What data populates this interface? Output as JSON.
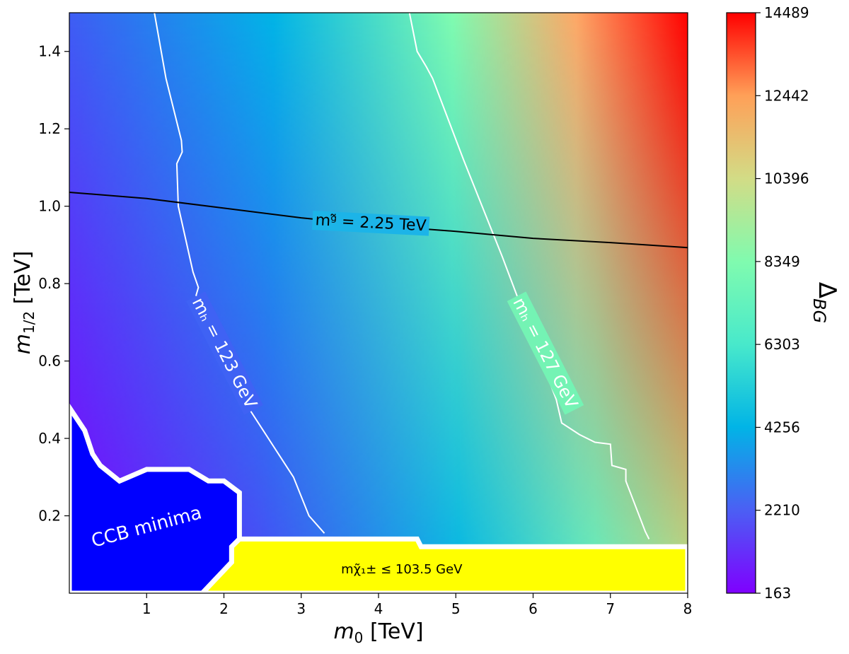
{
  "chart_data": {
    "type": "heatmap",
    "title": "",
    "xlabel": "m₀ [TeV]",
    "ylabel": "m₁/₂ [TeV]",
    "xlim": [
      0,
      8
    ],
    "ylim": [
      0,
      1.5
    ],
    "x_ticks": [
      1,
      2,
      3,
      4,
      5,
      6,
      7,
      8
    ],
    "x_tick_labels": [
      "1",
      "2",
      "3",
      "4",
      "5",
      "6",
      "7",
      "8"
    ],
    "y_ticks": [
      0.2,
      0.4,
      0.6,
      0.8,
      1.0,
      1.2,
      1.4
    ],
    "y_tick_labels": [
      "0.2",
      "0.4",
      "0.6",
      "0.8",
      "1.0",
      "1.2",
      "1.4"
    ],
    "colormap": "rainbow",
    "colorbar": {
      "label": "ΔBG",
      "min": 163,
      "max": 14489,
      "ticks": [
        163,
        2210,
        4256,
        6303,
        8349,
        10396,
        12442,
        14489
      ],
      "tick_labels": [
        "163",
        "2210",
        "4256",
        "6303",
        "8349",
        "10396",
        "12442",
        "14489"
      ]
    },
    "contours": [
      {
        "label": "mₕ = 123 GeV",
        "color": "#ffffff",
        "points": [
          [
            1.1,
            1.5
          ],
          [
            1.25,
            1.33
          ],
          [
            1.45,
            1.17
          ],
          [
            1.46,
            1.14
          ],
          [
            1.39,
            1.11
          ],
          [
            1.41,
            1.0
          ],
          [
            1.6,
            0.83
          ],
          [
            1.67,
            0.79
          ],
          [
            1.64,
            0.77
          ],
          [
            2.25,
            0.5
          ],
          [
            2.9,
            0.3
          ],
          [
            3.1,
            0.2
          ],
          [
            3.3,
            0.155
          ]
        ],
        "label_position": [
          2.0,
          0.62
        ],
        "label_rotation_deg": 63
      },
      {
        "label": "mₕ = 127 GeV",
        "color": "#ffffff",
        "points": [
          [
            4.4,
            1.5
          ],
          [
            4.5,
            1.4
          ],
          [
            4.62,
            1.36
          ],
          [
            4.7,
            1.33
          ],
          [
            5.1,
            1.12
          ],
          [
            5.6,
            0.87
          ],
          [
            6.3,
            0.5
          ],
          [
            6.37,
            0.44
          ],
          [
            6.6,
            0.41
          ],
          [
            6.8,
            0.39
          ],
          [
            7.0,
            0.385
          ],
          [
            7.02,
            0.33
          ],
          [
            7.2,
            0.32
          ],
          [
            7.2,
            0.29
          ],
          [
            7.45,
            0.16
          ],
          [
            7.5,
            0.14
          ]
        ],
        "label_position": [
          6.15,
          0.62
        ],
        "label_rotation_deg": 63
      },
      {
        "label": "mᵍ̃ = 2.25 TeV",
        "color": "#000000",
        "points": [
          [
            0,
            1.036
          ],
          [
            1,
            1.02
          ],
          [
            2,
            0.995
          ],
          [
            3,
            0.97
          ],
          [
            4,
            0.95
          ],
          [
            5,
            0.935
          ],
          [
            6,
            0.917
          ],
          [
            7,
            0.906
          ],
          [
            8,
            0.893
          ]
        ],
        "label_position": [
          3.9,
          0.955
        ],
        "label_rotation_deg": 3
      }
    ],
    "regions": [
      {
        "label": "CCB minima",
        "color": "#0000ff",
        "polygon": [
          [
            0,
            0
          ],
          [
            1.72,
            0
          ],
          [
            2.1,
            0.08
          ],
          [
            2.1,
            0.12
          ],
          [
            2.2,
            0.14
          ],
          [
            2.2,
            0.25
          ],
          [
            2.2,
            0.26
          ],
          [
            2.0,
            0.29
          ],
          [
            1.8,
            0.29
          ],
          [
            1.55,
            0.32
          ],
          [
            1.0,
            0.32
          ],
          [
            0.65,
            0.29
          ],
          [
            0.4,
            0.33
          ],
          [
            0.3,
            0.36
          ],
          [
            0.2,
            0.42
          ],
          [
            0.1,
            0.45
          ],
          [
            0,
            0.48
          ]
        ],
        "label_position": [
          1.0,
          0.17
        ],
        "label_rotation_deg": -15
      },
      {
        "label": "mχ̃₁± ≤ 103.5 GeV",
        "color": "#ffff00",
        "polygon": [
          [
            1.72,
            0
          ],
          [
            8,
            0
          ],
          [
            8,
            0.12
          ],
          [
            4.55,
            0.12
          ],
          [
            4.5,
            0.14
          ],
          [
            2.2,
            0.14
          ],
          [
            2.1,
            0.12
          ],
          [
            2.1,
            0.08
          ]
        ],
        "label_position": [
          4.3,
          0.06
        ],
        "label_rotation_deg": 0
      }
    ]
  }
}
